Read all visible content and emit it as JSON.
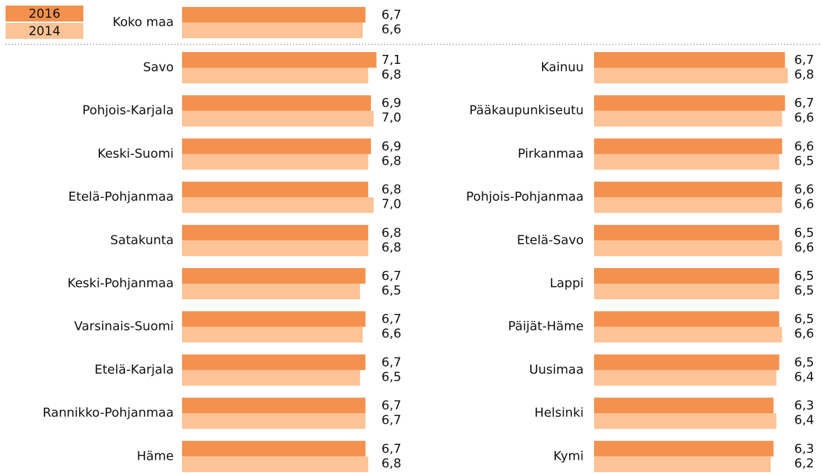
{
  "chart_data": {
    "type": "hbar",
    "categories": [
      "Koko maa",
      "Savo",
      "Pohjois-Karjala",
      "Keski-Suomi",
      "Etelä-Pohjanmaa",
      "Satakunta",
      "Keski-Pohjanmaa",
      "Varsinais-Suomi",
      "Etelä-Karjala",
      "Rannikko-Pohjanmaa",
      "Häme",
      "Kainuu",
      "Pääkaupunkiseutu",
      "Pirkanmaa",
      "Pohjois-Pohjanmaa",
      "Etelä-Savo",
      "Lappi",
      "Päijät-Häme",
      "Uusimaa",
      "Helsinki",
      "Kymi"
    ],
    "series": [
      {
        "name": "2016",
        "color": "#f5914f",
        "values": [
          6.7,
          7.1,
          6.9,
          6.9,
          6.8,
          6.8,
          6.7,
          6.7,
          6.7,
          6.7,
          6.7,
          6.7,
          6.7,
          6.6,
          6.6,
          6.5,
          6.5,
          6.5,
          6.5,
          6.3,
          6.3
        ],
        "value_labels": [
          "6,7",
          "7,1",
          "6,9",
          "6,9",
          "6,8",
          "6,8",
          "6,7",
          "6,7",
          "6,7",
          "6,7",
          "6,7",
          "6,7",
          "6,7",
          "6,6",
          "6,6",
          "6,5",
          "6,5",
          "6,5",
          "6,5",
          "6,3",
          "6,3"
        ]
      },
      {
        "name": "2014",
        "color": "#fcc397",
        "values": [
          6.6,
          6.8,
          7.0,
          6.8,
          7.0,
          6.8,
          6.5,
          6.6,
          6.5,
          6.7,
          6.8,
          6.8,
          6.6,
          6.5,
          6.6,
          6.6,
          6.5,
          6.6,
          6.4,
          6.4,
          6.2
        ],
        "value_labels": [
          "6,6",
          "6,8",
          "7,0",
          "6,8",
          "7,0",
          "6,8",
          "6,5",
          "6,6",
          "6,5",
          "6,7",
          "6,8",
          "6,8",
          "6,6",
          "6,5",
          "6,6",
          "6,6",
          "6,5",
          "6,6",
          "6,4",
          "6,4",
          "6,2"
        ]
      }
    ]
  }
}
